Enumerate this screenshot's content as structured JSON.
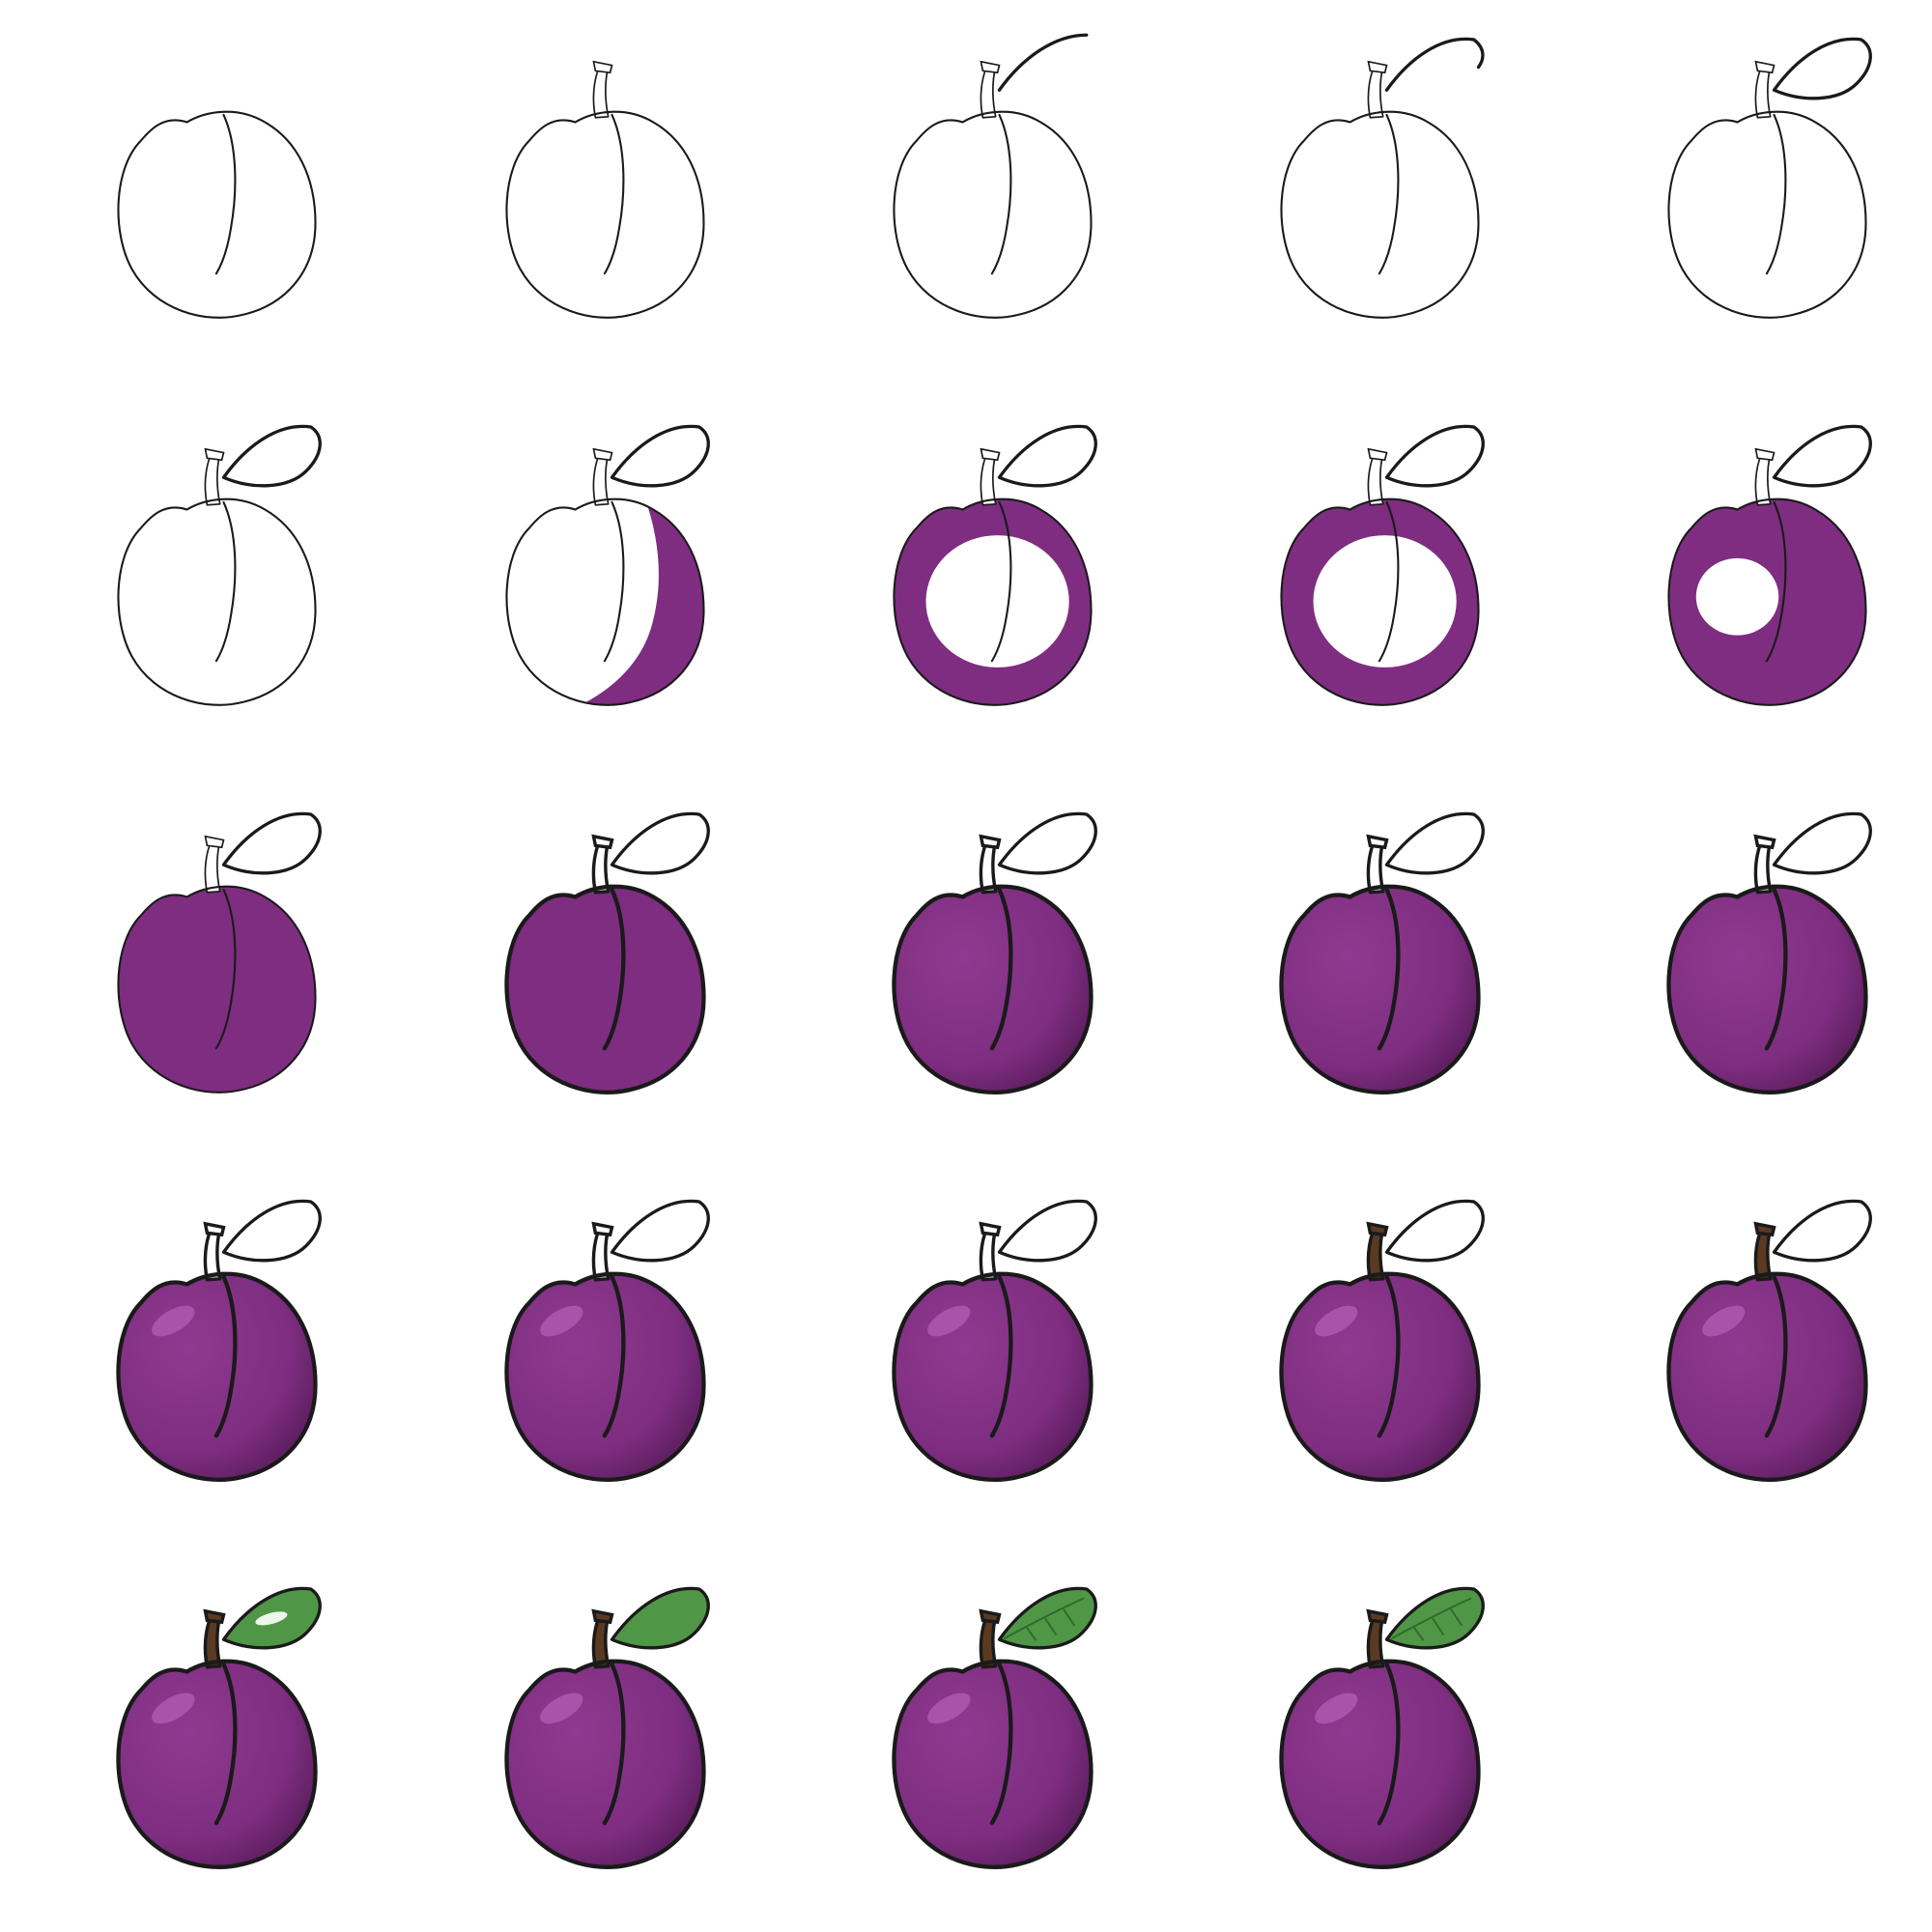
{
  "tutorial": {
    "subject": "plum",
    "layout": {
      "rows": 5,
      "columns": 5
    },
    "colors": {
      "outline": "#1a1a1a",
      "plum": "#7e2d80",
      "plum_shadow": "#5a1d5c",
      "plum_highlight": "#b25fb4",
      "stem": "#5b3a22",
      "leaf": "#4f9646",
      "leaf_highlight": "#eef5ea",
      "background": "#ffffff"
    },
    "steps": [
      {
        "step": 1,
        "stem": "none",
        "leaf": "none",
        "body_fill": "none",
        "shading": false,
        "highlight": false,
        "bold_outline": false
      },
      {
        "step": 2,
        "stem": "line",
        "leaf": "none",
        "body_fill": "none",
        "shading": false,
        "highlight": false,
        "bold_outline": false
      },
      {
        "step": 3,
        "stem": "line",
        "leaf": "stroke",
        "body_fill": "none",
        "shading": false,
        "highlight": false,
        "bold_outline": false
      },
      {
        "step": 4,
        "stem": "line",
        "leaf": "half",
        "body_fill": "none",
        "shading": false,
        "highlight": false,
        "bold_outline": false
      },
      {
        "step": 5,
        "stem": "line",
        "leaf": "outline",
        "body_fill": "none",
        "shading": false,
        "highlight": false,
        "bold_outline": false
      },
      {
        "step": 6,
        "stem": "line",
        "leaf": "outline",
        "body_fill": "none",
        "shading": false,
        "highlight": false,
        "bold_outline": false
      },
      {
        "step": 7,
        "stem": "line",
        "leaf": "outline",
        "body_fill": "crescent",
        "shading": false,
        "highlight": false,
        "bold_outline": false
      },
      {
        "step": 8,
        "stem": "line",
        "leaf": "outline",
        "body_fill": "ring",
        "shading": false,
        "highlight": false,
        "bold_outline": false
      },
      {
        "step": 9,
        "stem": "line",
        "leaf": "outline",
        "body_fill": "ring",
        "shading": false,
        "highlight": false,
        "bold_outline": false
      },
      {
        "step": 10,
        "stem": "line",
        "leaf": "outline",
        "body_fill": "mostly",
        "shading": false,
        "highlight": false,
        "bold_outline": false
      },
      {
        "step": 11,
        "stem": "line",
        "leaf": "outline",
        "body_fill": "full",
        "shading": false,
        "highlight": false,
        "bold_outline": false
      },
      {
        "step": 12,
        "stem": "line",
        "leaf": "outline",
        "body_fill": "full",
        "shading": false,
        "highlight": false,
        "bold_outline": true
      },
      {
        "step": 13,
        "stem": "line",
        "leaf": "outline",
        "body_fill": "full",
        "shading": true,
        "highlight": false,
        "bold_outline": true
      },
      {
        "step": 14,
        "stem": "line",
        "leaf": "outline",
        "body_fill": "full",
        "shading": true,
        "highlight": false,
        "bold_outline": true
      },
      {
        "step": 15,
        "stem": "line",
        "leaf": "outline",
        "body_fill": "full",
        "shading": true,
        "highlight": false,
        "bold_outline": true
      },
      {
        "step": 16,
        "stem": "line",
        "leaf": "outline",
        "body_fill": "full",
        "shading": true,
        "highlight": true,
        "bold_outline": true
      },
      {
        "step": 17,
        "stem": "line",
        "leaf": "outline",
        "body_fill": "full",
        "shading": true,
        "highlight": true,
        "bold_outline": true
      },
      {
        "step": 18,
        "stem": "line",
        "leaf": "outline",
        "body_fill": "full",
        "shading": true,
        "highlight": true,
        "bold_outline": true
      },
      {
        "step": 19,
        "stem": "brown",
        "leaf": "outline",
        "body_fill": "full",
        "shading": true,
        "highlight": true,
        "bold_outline": true
      },
      {
        "step": 20,
        "stem": "brown",
        "leaf": "outline",
        "body_fill": "full",
        "shading": true,
        "highlight": true,
        "bold_outline": true
      },
      {
        "step": 21,
        "stem": "brown",
        "leaf": "green-gloss",
        "body_fill": "full",
        "shading": true,
        "highlight": true,
        "bold_outline": true
      },
      {
        "step": 22,
        "stem": "brown",
        "leaf": "green",
        "body_fill": "full",
        "shading": true,
        "highlight": true,
        "bold_outline": true
      },
      {
        "step": 23,
        "stem": "brown",
        "leaf": "green-veins",
        "body_fill": "full",
        "shading": true,
        "highlight": true,
        "bold_outline": true
      },
      {
        "step": 24,
        "stem": "brown",
        "leaf": "green-veins",
        "body_fill": "full",
        "shading": true,
        "highlight": true,
        "bold_outline": true
      }
    ]
  }
}
